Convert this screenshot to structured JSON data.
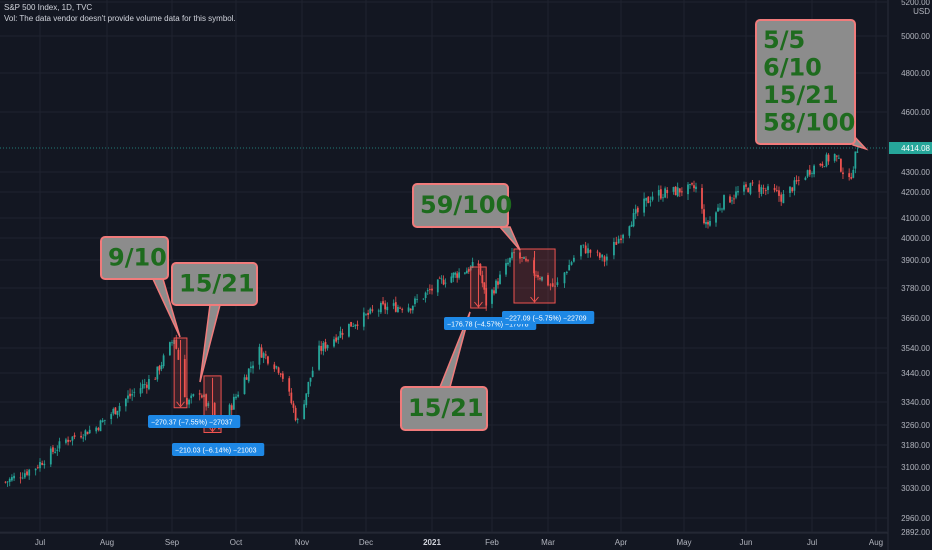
{
  "header": {
    "title": "S&P 500 Index, 1D, TVC",
    "volume_note": "Vol: The data vendor doesn't provide volume data for this symbol."
  },
  "price_axis": {
    "currency": "USD",
    "last_price": "4414.08",
    "last_price_color": "#26a69a"
  },
  "chart_data": {
    "type": "candlestick",
    "title": "S&P 500 Index, 1D, TVC",
    "y_ticks": [
      2892,
      2960,
      3030,
      3100,
      3180,
      3260,
      3340,
      3440,
      3540,
      3660,
      3780,
      3900,
      4000,
      4100,
      4200,
      4300,
      4414.08,
      4600,
      4800,
      5000,
      5200
    ],
    "y_tick_labels": [
      "2892.00",
      "2960.00",
      "3030.00",
      "3100.00",
      "3180.00",
      "3260.00",
      "3340.00",
      "3440.00",
      "3540.00",
      "3660.00",
      "3780.00",
      "3900.00",
      "4000.00",
      "4100.00",
      "4200.00",
      "4300.00",
      "4414.08",
      "4600.00",
      "4800.00",
      "5000.00",
      "5200.00"
    ],
    "ylim": [
      2892,
      5200
    ],
    "y_scale": "log",
    "x_labels": [
      "Jul",
      "Aug",
      "Sep",
      "Oct",
      "Nov",
      "Dec",
      "2021",
      "Feb",
      "Mar",
      "Apr",
      "May",
      "Jun",
      "Jul",
      "Aug"
    ],
    "x_label_dates": [
      "2020-07-01",
      "2020-08-01",
      "2020-09-01",
      "2020-10-01",
      "2020-11-01",
      "2020-12-01",
      "2021-01-01",
      "2021-02-01",
      "2021-03-01",
      "2021-04-01",
      "2021-05-01",
      "2021-06-01",
      "2021-07-01",
      "2021-08-01"
    ],
    "price_path": {
      "dates": [
        "2020-06-15",
        "2020-06-29",
        "2020-07-13",
        "2020-07-27",
        "2020-08-10",
        "2020-08-24",
        "2020-09-02",
        "2020-09-08",
        "2020-09-14",
        "2020-09-23",
        "2020-10-01",
        "2020-10-12",
        "2020-10-22",
        "2020-10-30",
        "2020-11-09",
        "2020-11-23",
        "2020-12-08",
        "2020-12-22",
        "2021-01-08",
        "2021-01-25",
        "2021-01-29",
        "2021-02-12",
        "2021-02-25",
        "2021-03-04",
        "2021-03-15",
        "2021-03-25",
        "2021-04-05",
        "2021-04-16",
        "2021-05-07",
        "2021-05-12",
        "2021-05-20",
        "2021-06-04",
        "2021-06-18",
        "2021-07-01",
        "2021-07-12",
        "2021-07-19",
        "2021-07-23"
      ],
      "closes": [
        3050,
        3100,
        3200,
        3250,
        3350,
        3430,
        3580,
        3330,
        3380,
        3240,
        3360,
        3530,
        3450,
        3270,
        3530,
        3630,
        3700,
        3710,
        3820,
        3880,
        3720,
        3930,
        3830,
        3780,
        3960,
        3900,
        4080,
        4190,
        4220,
        4060,
        4160,
        4230,
        4180,
        4320,
        4380,
        4250,
        4414
      ]
    },
    "annotations": [
      {
        "text": "9/10",
        "lines": [
          "9/10"
        ]
      },
      {
        "text": "15/21",
        "lines": [
          "15/21"
        ]
      },
      {
        "text": "59/100",
        "lines": [
          "59/100"
        ]
      },
      {
        "text": "15/21",
        "lines": [
          "15/21"
        ]
      },
      {
        "text": "5/5 6/10 15/21 58/100",
        "lines": [
          "5/5",
          "6/10",
          "15/21",
          "58/100"
        ]
      }
    ],
    "measurement_tags": [
      {
        "label": "−270.37 (−7.55%) −27037"
      },
      {
        "label": "−210.03 (−6.14%) −21003"
      },
      {
        "label": "−176.78 (−4.57%) −17678"
      },
      {
        "label": "−227.09 (−5.75%) −22709"
      }
    ],
    "colors": {
      "up": "#26a69a",
      "down": "#ef5350",
      "callout_fill": "#8c8c8c",
      "callout_border": "#f07b7b",
      "callout_text": "#1e6b1e",
      "tag_fill": "#1e88e5",
      "background": "#131722",
      "grid": "#1f2330"
    },
    "grid": true
  }
}
